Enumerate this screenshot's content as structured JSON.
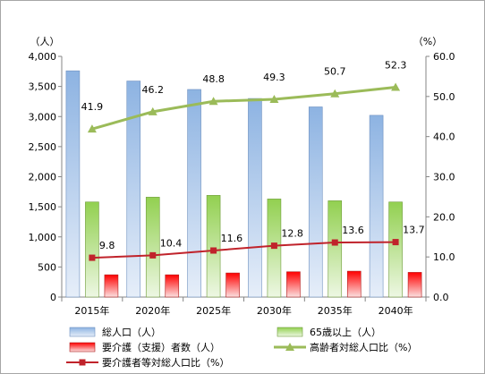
{
  "chart_data": {
    "type": "bar",
    "categories": [
      "2015年",
      "2020年",
      "2025年",
      "2030年",
      "2035年",
      "2040年"
    ],
    "left_axis": {
      "unit": "（人）",
      "ylim": [
        0,
        4000
      ],
      "ticks": [
        "0",
        "500",
        "1,000",
        "1,500",
        "2,000",
        "2,500",
        "3,000",
        "3,500",
        "4,000"
      ]
    },
    "right_axis": {
      "unit": "（%）",
      "ylim": [
        0,
        60
      ],
      "ticks": [
        "0.0",
        "10.0",
        "20.0",
        "30.0",
        "40.0",
        "50.0",
        "60.0"
      ]
    },
    "series": [
      {
        "name": "総人口（人）",
        "type": "bar",
        "axis": "left",
        "color": "#8db3e2",
        "values": [
          3760,
          3590,
          3450,
          3300,
          3160,
          3020
        ]
      },
      {
        "name": "65歳以上（人）",
        "type": "bar",
        "axis": "left",
        "color": "#92d050",
        "values": [
          1580,
          1660,
          1690,
          1630,
          1600,
          1580
        ]
      },
      {
        "name": "要介護（支援）者数（人）",
        "type": "bar",
        "axis": "left",
        "color": "#e8212b",
        "values": [
          370,
          370,
          400,
          420,
          430,
          410
        ]
      },
      {
        "name": "高齢者対総人口比（%）",
        "type": "line",
        "axis": "right",
        "color": "#9bbb59",
        "values": [
          41.9,
          46.2,
          48.8,
          49.3,
          50.7,
          52.3
        ],
        "labels": [
          "41.9",
          "46.2",
          "48.8",
          "49.3",
          "50.7",
          "52.3"
        ]
      },
      {
        "name": "要介護者等対総人口比（%）",
        "type": "line",
        "axis": "right",
        "color": "#c0232b",
        "values": [
          9.8,
          10.4,
          11.6,
          12.8,
          13.6,
          13.7
        ],
        "labels": [
          "9.8",
          "10.4",
          "11.6",
          "12.8",
          "13.6",
          "13.7"
        ]
      }
    ],
    "grid": false,
    "legend_position": "bottom"
  }
}
